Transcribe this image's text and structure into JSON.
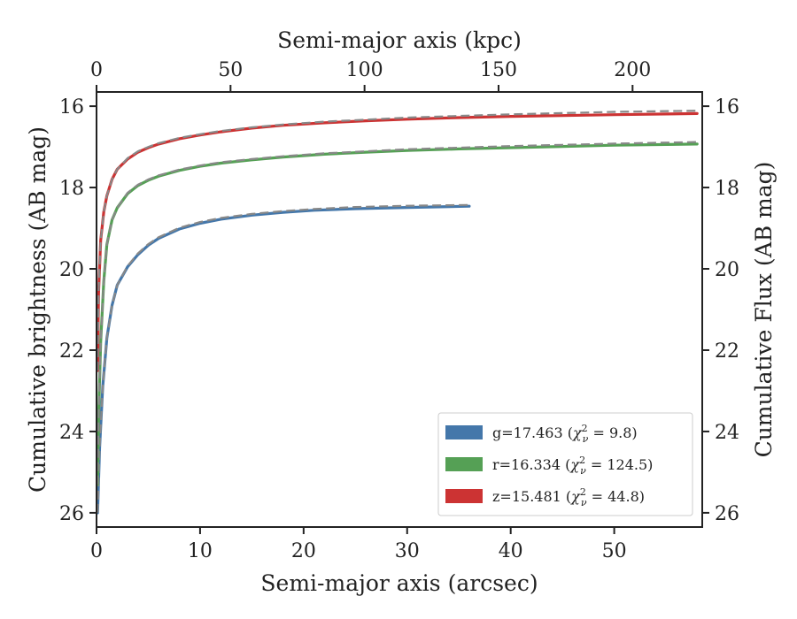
{
  "chart_data": {
    "type": "line",
    "x_bottom": {
      "label": "Semi-major axis (arcsec)",
      "lim": [
        0,
        58.5
      ],
      "ticks": [
        0,
        10,
        20,
        30,
        40,
        50
      ]
    },
    "x_top": {
      "label": "Semi-major axis (kpc)",
      "lim": [
        0,
        226
      ],
      "ticks": [
        0,
        50,
        100,
        150,
        200
      ]
    },
    "y_left": {
      "label": "Cumulative brightness (AB mag)",
      "lim": [
        26.35,
        15.65
      ],
      "inverted": true,
      "ticks": [
        16,
        18,
        20,
        22,
        24,
        26
      ]
    },
    "y_right": {
      "label": "Cumulative Flux (AB mag)",
      "lim": [
        26.35,
        15.65
      ],
      "inverted": true,
      "ticks": [
        16,
        18,
        20,
        22,
        24,
        26
      ]
    },
    "legend": {
      "position": "lower-right"
    },
    "series": [
      {
        "band": "g",
        "label": "g=17.463 ($\\chi^2_\\nu = 9.8$)",
        "label_text": "g=17.463 (",
        "label_math": "χ",
        "label_sup": "2",
        "label_sub": "ν",
        "label_value": " = 9.8)",
        "color": "#4477aa",
        "model_color": "#888888",
        "x": [
          0.1,
          0.3,
          0.6,
          1,
          1.5,
          2,
          3,
          4,
          5,
          6,
          8,
          10,
          12,
          15,
          18,
          21,
          25,
          30,
          36
        ],
        "y": [
          26.0,
          24.4,
          22.9,
          21.7,
          20.9,
          20.4,
          19.95,
          19.65,
          19.42,
          19.25,
          19.02,
          18.88,
          18.78,
          18.68,
          18.61,
          18.56,
          18.52,
          18.49,
          18.46
        ],
        "model_y": [
          26.0,
          24.4,
          22.9,
          21.7,
          20.9,
          20.4,
          19.93,
          19.62,
          19.39,
          19.22,
          18.99,
          18.85,
          18.75,
          18.65,
          18.58,
          18.53,
          18.48,
          18.45,
          18.43
        ]
      },
      {
        "band": "r",
        "label": "r=16.334 ($\\chi^2_\\nu = 124.5$)",
        "label_text": "r=16.334 (",
        "label_math": "χ",
        "label_sup": "2",
        "label_sub": "ν",
        "label_value": " = 124.5)",
        "color": "#55a055",
        "model_color": "#888888",
        "x": [
          0.1,
          0.2,
          0.4,
          0.7,
          1,
          1.5,
          2,
          3,
          4,
          5,
          6,
          8,
          10,
          12,
          15,
          18,
          22,
          26,
          30,
          35,
          40,
          45,
          50,
          58
        ],
        "y": [
          25.3,
          23.7,
          21.8,
          20.3,
          19.4,
          18.8,
          18.5,
          18.15,
          17.95,
          17.82,
          17.72,
          17.58,
          17.48,
          17.4,
          17.32,
          17.25,
          17.18,
          17.13,
          17.09,
          17.05,
          17.02,
          16.99,
          16.96,
          16.93
        ],
        "model_y": [
          25.3,
          23.7,
          21.8,
          20.3,
          19.4,
          18.8,
          18.5,
          18.13,
          17.93,
          17.8,
          17.7,
          17.56,
          17.46,
          17.38,
          17.3,
          17.23,
          17.16,
          17.11,
          17.06,
          17.02,
          16.98,
          16.95,
          16.92,
          16.88
        ]
      },
      {
        "band": "z",
        "label": "z=15.481 ($\\chi^2_\\nu = 44.8$)",
        "label_text": "z=15.481 (",
        "label_math": "χ",
        "label_sup": "2",
        "label_sub": "ν",
        "label_value": " = 44.8)",
        "color": "#cc3333",
        "model_color": "#888888",
        "x": [
          0.1,
          0.2,
          0.4,
          0.7,
          1,
          1.5,
          2,
          3,
          4,
          5,
          6,
          8,
          10,
          12,
          15,
          18,
          22,
          26,
          30,
          35,
          40,
          45,
          50,
          58
        ],
        "y": [
          22.5,
          20.6,
          19.3,
          18.6,
          18.2,
          17.8,
          17.55,
          17.3,
          17.13,
          17.02,
          16.93,
          16.8,
          16.71,
          16.63,
          16.54,
          16.47,
          16.41,
          16.36,
          16.32,
          16.28,
          16.25,
          16.23,
          16.21,
          16.18
        ],
        "model_y": [
          22.5,
          20.6,
          19.3,
          18.6,
          18.2,
          17.8,
          17.55,
          17.28,
          17.11,
          17.0,
          16.91,
          16.78,
          16.69,
          16.61,
          16.52,
          16.45,
          16.38,
          16.33,
          16.28,
          16.24,
          16.2,
          16.17,
          16.14,
          16.11
        ]
      }
    ]
  }
}
